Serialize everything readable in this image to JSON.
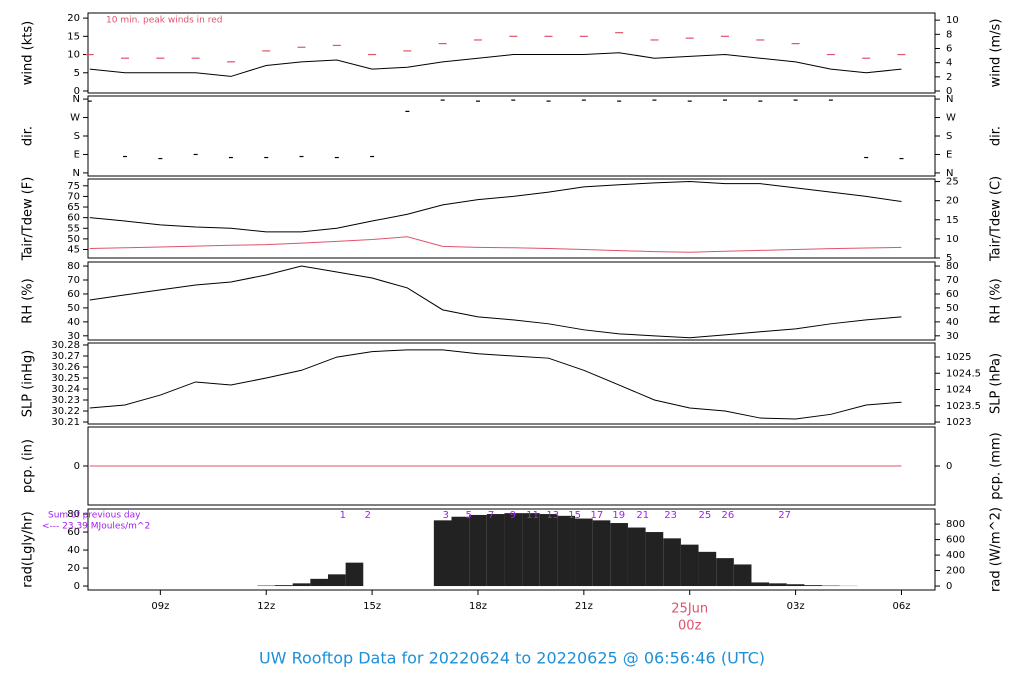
{
  "title": "UW Rooftop Data for 20220624  to  20220625 @ 06:56:46  (UTC)",
  "chart_data": [
    {
      "type": "line",
      "ylabel": "wind (kts)",
      "y2label": "wind (m/s)",
      "note": "10 min. peak winds in red",
      "note_color": "#df536b",
      "xlim": [
        6.95,
        30.95
      ],
      "ylim": [
        -0.55,
        21.4
      ],
      "yticks": [
        0,
        5,
        10,
        15,
        20
      ],
      "y2lim": [
        -0.28,
        11.01
      ],
      "y2ticks": [
        0,
        2,
        4,
        6,
        8,
        10
      ],
      "x": [
        7,
        8,
        9,
        10,
        11,
        12,
        13,
        14,
        15,
        16,
        17,
        18,
        19,
        20,
        21,
        22,
        23,
        24,
        25,
        26,
        27,
        28,
        29,
        30
      ],
      "series": [
        {
          "color": "#000000",
          "values": [
            6,
            5,
            5,
            5,
            4,
            7,
            8,
            8.5,
            6,
            6.5,
            8,
            9,
            10,
            10,
            10,
            10.5,
            9,
            9.5,
            10,
            9,
            8,
            6,
            5,
            6
          ]
        },
        {
          "color": "#df536b",
          "marker": "dash",
          "values": [
            10,
            9,
            9,
            9,
            8,
            11,
            12,
            12.5,
            10,
            11,
            13,
            14,
            15,
            15,
            15,
            16,
            14,
            14.5,
            15,
            14,
            13,
            10,
            9,
            10
          ]
        }
      ]
    },
    {
      "type": "scatter",
      "ylabel": "dir.",
      "y2label": "dir.",
      "xlim": [
        6.95,
        30.95
      ],
      "ylim": [
        -15,
        375
      ],
      "yticks": [
        {
          "value": 0,
          "label": "N"
        },
        {
          "value": 90,
          "label": "E"
        },
        {
          "value": 180,
          "label": "S"
        },
        {
          "value": 270,
          "label": "W"
        },
        {
          "value": 360,
          "label": "N"
        }
      ],
      "y2lim": [
        -15,
        375
      ],
      "y2ticks": [
        {
          "value": 0,
          "label": "N"
        },
        {
          "value": 90,
          "label": "E"
        },
        {
          "value": 180,
          "label": "S"
        },
        {
          "value": 270,
          "label": "W"
        },
        {
          "value": 360,
          "label": "N"
        }
      ],
      "x": [
        7,
        8,
        9,
        10,
        11,
        12,
        13,
        14,
        15,
        16,
        17,
        18,
        19,
        20,
        21,
        22,
        23,
        24,
        25,
        26,
        27,
        28,
        29,
        30
      ],
      "series": [
        {
          "color": "#000000",
          "marker": "dot",
          "values": [
            350,
            80,
            70,
            90,
            75,
            75,
            80,
            75,
            80,
            300,
            355,
            350,
            355,
            350,
            355,
            350,
            355,
            350,
            355,
            350,
            355,
            355,
            75,
            70
          ]
        }
      ]
    },
    {
      "type": "line",
      "ylabel": "Tair/Tdew (F)",
      "y2label": "Tair/Tdew (C)",
      "xlim": [
        6.95,
        30.95
      ],
      "ylim": [
        41,
        78.2
      ],
      "yticks": [
        45,
        50,
        55,
        60,
        65,
        70,
        75
      ],
      "y2lim": [
        5,
        25.67
      ],
      "y2ticks": [
        5,
        10,
        15,
        20,
        25
      ],
      "x": [
        7,
        8,
        9,
        10,
        11,
        12,
        13,
        14,
        15,
        16,
        17,
        18,
        19,
        20,
        21,
        22,
        23,
        24,
        25,
        26,
        27,
        28,
        29,
        30
      ],
      "series": [
        {
          "color": "#000000",
          "values": [
            60,
            58.4,
            56.6,
            55.6,
            55,
            53.3,
            53.3,
            55,
            58.4,
            61.6,
            66,
            68.5,
            70,
            72,
            74.5,
            75.5,
            76.4,
            77,
            76,
            76,
            74,
            72,
            70,
            67.6
          ]
        },
        {
          "color": "#df536b",
          "values": [
            45.5,
            45.8,
            46.2,
            46.6,
            47,
            47.3,
            48,
            48.8,
            49.7,
            51,
            46.5,
            46,
            45.8,
            45.5,
            45,
            44.5,
            44,
            43.7,
            44.2,
            44.6,
            45,
            45.4,
            45.7,
            46
          ]
        }
      ]
    },
    {
      "type": "line",
      "ylabel": "RH (%)",
      "y2label": "RH (%)",
      "xlim": [
        6.95,
        30.95
      ],
      "ylim": [
        27,
        82.9
      ],
      "yticks": [
        30,
        40,
        50,
        60,
        70,
        80
      ],
      "y2lim": [
        27,
        82.9
      ],
      "y2ticks": [
        30,
        40,
        50,
        60,
        70,
        80
      ],
      "x": [
        7,
        8,
        9,
        10,
        11,
        12,
        13,
        14,
        15,
        16,
        17,
        18,
        19,
        20,
        21,
        22,
        23,
        24,
        25,
        26,
        27,
        28,
        29,
        30
      ],
      "series": [
        {
          "color": "#000000",
          "values": [
            55.7,
            59.3,
            62.9,
            66.4,
            68.6,
            73.6,
            80,
            75.7,
            71.4,
            64.3,
            48.6,
            43.6,
            41.4,
            38.6,
            34.3,
            31.4,
            30,
            28.6,
            30.7,
            32.9,
            35,
            38.6,
            41.4,
            43.6
          ]
        }
      ]
    },
    {
      "type": "line",
      "ylabel": "SLP (inHg)",
      "y2label": "SLP (hPa)",
      "xlim": [
        6.95,
        30.95
      ],
      "ylim": [
        30.2082,
        30.2818
      ],
      "yticks": [
        30.21,
        30.22,
        30.23,
        30.24,
        30.25,
        30.26,
        30.27,
        30.28
      ],
      "y2lim": [
        1022.94,
        1025.43
      ],
      "y2ticks": [
        1023,
        1023.5,
        1024,
        1024.5,
        1025
      ],
      "x": [
        7,
        8,
        9,
        10,
        11,
        12,
        13,
        14,
        15,
        16,
        17,
        18,
        19,
        20,
        21,
        22,
        23,
        24,
        25,
        26,
        27,
        28,
        29,
        30
      ],
      "series": [
        {
          "color": "#000000",
          "values": [
            30.2227,
            30.2255,
            30.2345,
            30.2464,
            30.2436,
            30.25,
            30.257,
            30.269,
            30.274,
            30.2755,
            30.2755,
            30.272,
            30.27,
            30.268,
            30.257,
            30.2436,
            30.23,
            30.2227,
            30.22,
            30.2136,
            30.2127,
            30.217,
            30.2255,
            30.228
          ]
        }
      ]
    },
    {
      "type": "line",
      "ylabel": "pcp. (in)",
      "y2label": "pcp. (mm)",
      "xlim": [
        6.95,
        30.95
      ],
      "ylim": [
        -1,
        1
      ],
      "yticks": [
        0
      ],
      "y2lim": [
        -25.4,
        25.4
      ],
      "y2ticks": [
        0
      ],
      "x": [
        7,
        8,
        9,
        10,
        11,
        12,
        13,
        14,
        15,
        16,
        17,
        18,
        19,
        20,
        21,
        22,
        23,
        24,
        25,
        26,
        27,
        28,
        29,
        30
      ],
      "series": [
        {
          "color": "#df536b",
          "values": [
            0,
            0,
            0,
            0,
            0,
            0,
            0,
            0,
            0,
            0,
            0,
            0,
            0,
            0,
            0,
            0,
            0,
            0,
            0,
            0,
            0,
            0,
            0,
            0
          ]
        }
      ]
    },
    {
      "type": "bar",
      "ylabel": "rad(Lgly/hr)",
      "y2label": "rad (W/m^2)",
      "notes": [
        "Sum of previous day",
        "<--- 23.39 MJoules/m^2"
      ],
      "note_color": "#a020f0",
      "markers": {
        "labels": [
          "1",
          "2",
          "3",
          "5",
          "7",
          "9",
          "11",
          "13",
          "15",
          "17",
          "19",
          "21",
          "23",
          "25",
          "26",
          "27"
        ],
        "x": [
          14.17,
          14.88,
          17.09,
          17.74,
          18.37,
          18.99,
          19.55,
          20.12,
          20.74,
          21.37,
          21.99,
          22.67,
          23.46,
          24.43,
          25.08,
          26.69
        ]
      },
      "xlim": [
        6.95,
        30.95
      ],
      "ylim": [
        -4.4,
        85.6
      ],
      "yticks": [
        0,
        20,
        40,
        60,
        80
      ],
      "y2lim": [
        -51,
        995
      ],
      "y2ticks": [
        0,
        200,
        400,
        600,
        800
      ],
      "xticks": [
        {
          "value": 9,
          "label": "09z"
        },
        {
          "value": 12,
          "label": "12z"
        },
        {
          "value": 15,
          "label": "15z"
        },
        {
          "value": 18,
          "label": "18z"
        },
        {
          "value": 21,
          "label": "21z"
        },
        {
          "value": 24,
          "label": "00z"
        },
        {
          "value": 27,
          "label": "03z"
        },
        {
          "value": 30,
          "label": "06z"
        }
      ],
      "date_label": {
        "text": "25Jun",
        "x": 24,
        "color": "#df536b"
      },
      "x": [
        7,
        7.5,
        8,
        8.5,
        9,
        9.5,
        10,
        10.5,
        11,
        11.5,
        12,
        12.5,
        13,
        13.5,
        14,
        14.5,
        15,
        15.5,
        16,
        16.5,
        17,
        17.5,
        18,
        18.5,
        19,
        19.5,
        20,
        20.5,
        21,
        21.5,
        22,
        22.5,
        23,
        23.5,
        24,
        24.5,
        25,
        25.5,
        26,
        26.5,
        27,
        27.5,
        28,
        28.5,
        29,
        29.5,
        30,
        30.5
      ],
      "series": [
        {
          "color": "#222222",
          "values": [
            0,
            0,
            0,
            0,
            0,
            0,
            0,
            0,
            0,
            0,
            0.5,
            1,
            3,
            8,
            13,
            26,
            0,
            0,
            0,
            0,
            73,
            77,
            79,
            80,
            81,
            81,
            80,
            78,
            75,
            73,
            70,
            65,
            60,
            53,
            46,
            38,
            31,
            24,
            4,
            3,
            2,
            1,
            0.5,
            0.2,
            0,
            0,
            0,
            0
          ]
        }
      ]
    }
  ]
}
